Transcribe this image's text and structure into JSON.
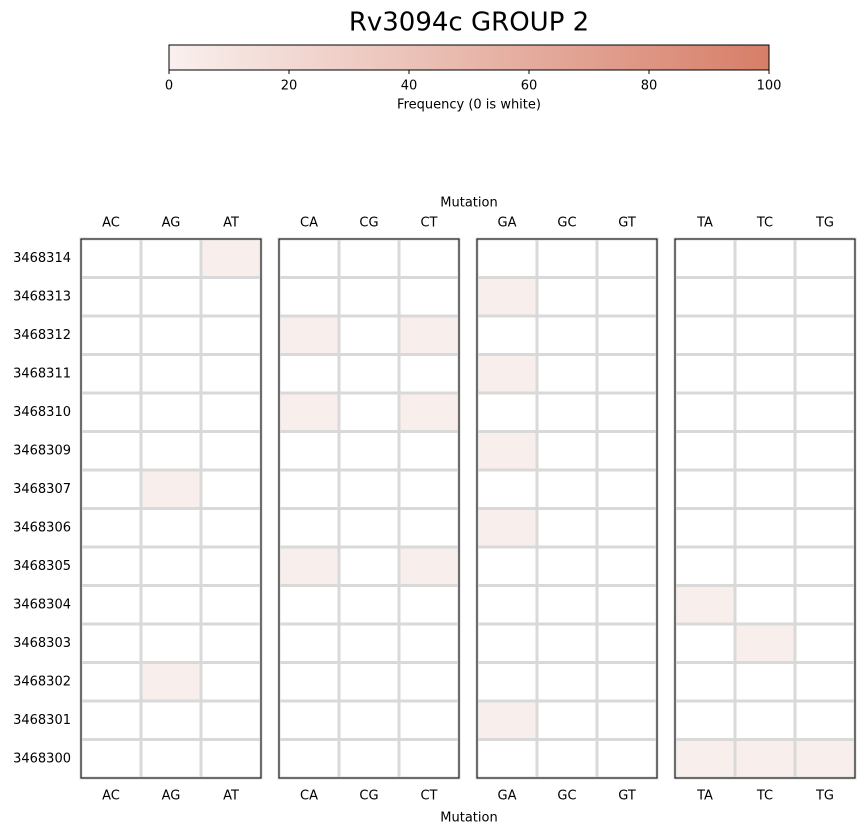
{
  "chart_data": {
    "type": "heatmap",
    "title": "Rv3094c GROUP 2",
    "colorbar_label": "Frequency (0 is white)",
    "zlim": [
      0,
      100
    ],
    "zticks": [
      0,
      20,
      40,
      60,
      80,
      100
    ],
    "colormap": [
      "#f9f0ee",
      "#d77e68"
    ],
    "zero_color": "#ffffff",
    "grid_color": "#d9d9d9",
    "x_label": "Mutation",
    "columns": [
      "AC",
      "AG",
      "AT",
      "CA",
      "CG",
      "CT",
      "GA",
      "GC",
      "GT",
      "TA",
      "TC",
      "TG"
    ],
    "rows": [
      "3468314",
      "3468313",
      "3468312",
      "3468311",
      "3468310",
      "3468309",
      "3468307",
      "3468306",
      "3468305",
      "3468304",
      "3468303",
      "3468302",
      "3468301",
      "3468300"
    ],
    "values": [
      [
        0,
        0,
        2,
        0,
        0,
        0,
        0,
        0,
        0,
        0,
        0,
        0
      ],
      [
        0,
        0,
        0,
        0,
        0,
        0,
        2,
        0,
        0,
        0,
        0,
        0
      ],
      [
        0,
        0,
        0,
        2,
        0,
        2,
        0,
        0,
        0,
        0,
        0,
        0
      ],
      [
        0,
        0,
        0,
        0,
        0,
        0,
        2,
        0,
        0,
        0,
        0,
        0
      ],
      [
        0,
        0,
        0,
        2,
        0,
        2,
        0,
        0,
        0,
        0,
        0,
        0
      ],
      [
        0,
        0,
        0,
        0,
        0,
        0,
        2,
        0,
        0,
        0,
        0,
        0
      ],
      [
        0,
        2,
        0,
        0,
        0,
        0,
        0,
        0,
        0,
        0,
        0,
        0
      ],
      [
        0,
        0,
        0,
        0,
        0,
        0,
        2,
        0,
        0,
        0,
        0,
        0
      ],
      [
        0,
        0,
        0,
        2,
        0,
        2,
        0,
        0,
        0,
        0,
        0,
        0
      ],
      [
        0,
        0,
        0,
        0,
        0,
        0,
        0,
        0,
        0,
        2,
        0,
        0
      ],
      [
        0,
        0,
        0,
        0,
        0,
        0,
        0,
        0,
        0,
        0,
        2,
        0
      ],
      [
        0,
        2,
        0,
        0,
        0,
        0,
        0,
        0,
        0,
        0,
        0,
        0
      ],
      [
        0,
        0,
        0,
        0,
        0,
        0,
        2,
        0,
        0,
        0,
        0,
        0
      ],
      [
        0,
        0,
        0,
        0,
        0,
        0,
        0,
        0,
        0,
        2,
        2,
        2
      ]
    ]
  }
}
